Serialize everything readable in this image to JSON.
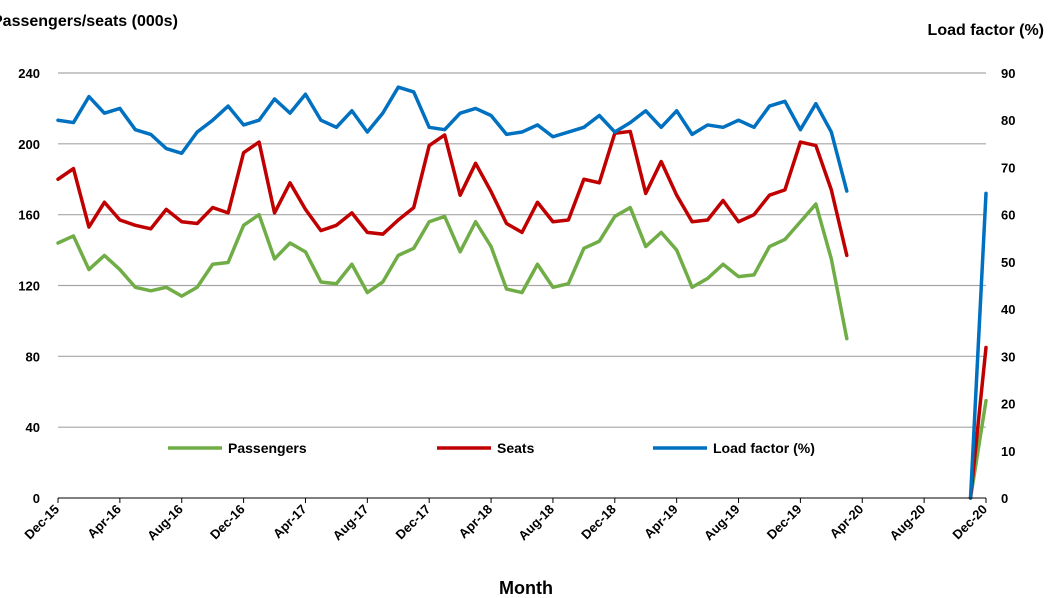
{
  "chart_data": {
    "type": "line",
    "title": "",
    "xlabel": "Month",
    "ylabel_left": "Passengers/seats (000s)",
    "ylabel_right": "Load factor (%)",
    "ylim_left": [
      0,
      240
    ],
    "ylim_right": [
      0,
      90
    ],
    "yticks_left": [
      "0",
      "40",
      "80",
      "120",
      "160",
      "200",
      "240"
    ],
    "yticks_right": [
      "0",
      "10",
      "20",
      "30",
      "40",
      "50",
      "60",
      "70",
      "80",
      "90"
    ],
    "xtick_labels": [
      "Dec-15",
      "Apr-16",
      "Aug-16",
      "Dec-16",
      "Apr-17",
      "Aug-17",
      "Dec-17",
      "Apr-18",
      "Aug-18",
      "Dec-18",
      "Apr-19",
      "Aug-19",
      "Dec-19",
      "Apr-20",
      "Aug-20",
      "Dec-20"
    ],
    "x_start": "Dec-15",
    "x_end": "Dec-20",
    "grid": true,
    "legend_position": "bottom",
    "colors": {
      "Passengers": "#70AD47",
      "Seats": "#C00000",
      "Load factor (%)": "#0070C0"
    },
    "series": [
      {
        "name": "Passengers",
        "axis": "left",
        "segments": [
          [
            144,
            148,
            129,
            137,
            129,
            119,
            117,
            119,
            114,
            119,
            132,
            133,
            154,
            160,
            135,
            144,
            139,
            122,
            121,
            132,
            116,
            122,
            137,
            141,
            156,
            159,
            139,
            156,
            142,
            118,
            116,
            132,
            119,
            121,
            141,
            145,
            159,
            164,
            142,
            150,
            140,
            119,
            124,
            132,
            125,
            126,
            142,
            146,
            156,
            166,
            135,
            90
          ],
          [
            0,
            55
          ]
        ]
      },
      {
        "name": "Seats",
        "axis": "left",
        "segments": [
          [
            180,
            186,
            153,
            167,
            157,
            154,
            152,
            163,
            156,
            155,
            164,
            161,
            195,
            201,
            161,
            178,
            163,
            151,
            154,
            161,
            150,
            149,
            157,
            164,
            199,
            205,
            171,
            189,
            173,
            155,
            150,
            167,
            156,
            157,
            180,
            178,
            206,
            207,
            172,
            190,
            171,
            156,
            157,
            168,
            156,
            160,
            171,
            174,
            201,
            199,
            174,
            137
          ],
          [
            0,
            85
          ]
        ]
      },
      {
        "name": "Load factor (%)",
        "axis": "right",
        "segments": [
          [
            80,
            79.5,
            85,
            81.5,
            82.5,
            78,
            77,
            74,
            73,
            77.5,
            80,
            83,
            79,
            80,
            84.5,
            81.5,
            85.5,
            80,
            78.5,
            82,
            77.5,
            81.5,
            87,
            86,
            78.5,
            78,
            81.5,
            82.5,
            81,
            77,
            77.5,
            79,
            76.5,
            77.5,
            78.5,
            81,
            77.5,
            79.5,
            82,
            78.5,
            82,
            77,
            79,
            78.5,
            80,
            78.5,
            83,
            84,
            78,
            83.5,
            77.5,
            65
          ],
          [
            0,
            64.5
          ]
        ]
      }
    ]
  }
}
